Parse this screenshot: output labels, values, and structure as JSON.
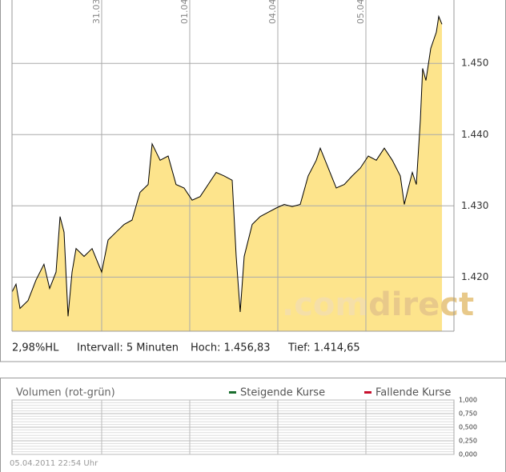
{
  "chart_data": [
    {
      "type": "line",
      "x": [
        -0.018,
        0.027,
        0.073,
        0.164,
        0.255,
        0.345,
        0.409,
        0.482,
        0.527,
        0.573,
        0.618,
        0.664,
        0.709,
        0.8,
        0.891,
        1.0,
        1.073,
        1.164,
        1.255,
        1.345,
        1.436,
        1.527,
        1.573,
        1.664,
        1.755,
        1.845,
        1.936,
        2.027,
        2.118,
        2.209,
        2.3,
        2.391,
        2.482,
        2.527,
        2.573,
        2.618,
        2.709,
        2.8,
        2.891,
        2.982,
        3.073,
        3.164,
        3.255,
        3.345,
        3.436,
        3.482,
        3.573,
        3.664,
        3.755,
        3.845,
        3.936,
        4.027,
        4.118,
        4.209,
        4.3,
        4.391,
        4.436,
        4.482,
        4.527,
        4.573,
        4.618,
        4.645,
        4.682,
        4.736,
        4.8,
        4.827,
        4.864
      ],
      "values": [
        1.4179,
        1.419,
        1.4156,
        1.4167,
        1.4196,
        1.4218,
        1.4184,
        1.4207,
        1.4285,
        1.4263,
        1.4145,
        1.4207,
        1.424,
        1.4229,
        1.424,
        1.4207,
        1.4252,
        1.4263,
        1.4274,
        1.428,
        1.4319,
        1.433,
        1.4387,
        1.4364,
        1.437,
        1.433,
        1.4325,
        1.4308,
        1.4313,
        1.433,
        1.4347,
        1.4342,
        1.4336,
        1.4229,
        1.4151,
        1.4229,
        1.4274,
        1.4285,
        1.4291,
        1.4297,
        1.4302,
        1.4299,
        1.4302,
        1.4342,
        1.4364,
        1.4381,
        1.4353,
        1.4325,
        1.433,
        1.4342,
        1.4353,
        1.437,
        1.4364,
        1.4381,
        1.4364,
        1.4342,
        1.4302,
        1.4325,
        1.4347,
        1.433,
        1.442,
        1.4493,
        1.4476,
        1.4521,
        1.4544,
        1.4566,
        1.4555
      ],
      "color": "#000000",
      "fill": "#fde48c",
      "xlim": [
        -0.018,
        5.0
      ],
      "xticks": [
        {
          "value": 1,
          "label": "31.03."
        },
        {
          "value": 2,
          "label": "01.04."
        },
        {
          "value": 3,
          "label": "04.04."
        },
        {
          "value": 4,
          "label": "05.04."
        }
      ],
      "ylim": [
        1.4124,
        1.4589
      ],
      "yticks": [
        {
          "value": 1.42,
          "label": "1.420"
        },
        {
          "value": 1.43,
          "label": "1.430"
        },
        {
          "value": 1.44,
          "label": "1.440"
        },
        {
          "value": 1.45,
          "label": "1.450"
        }
      ],
      "grid": true,
      "watermark": [
        ".com",
        "direct"
      ],
      "stats": [
        "2,98%HL",
        "Intervall: 5 Minuten",
        "Hoch: 1.456,83",
        "Tief: 1.414,65"
      ]
    },
    {
      "type": "bar",
      "title": "Volumen (rot-grün)",
      "series": [
        {
          "name": "Steigende Kurse",
          "color": "#1a6e2e"
        },
        {
          "name": "Fallende Kurse",
          "color": "#c8102e"
        }
      ],
      "xlim": [
        -0.018,
        5.0
      ],
      "xticks": [
        1,
        2,
        3,
        4
      ],
      "ylim": [
        0,
        1
      ],
      "yticks": [
        {
          "value": 0,
          "label": "0,000"
        },
        {
          "value": 0.25,
          "label": "0,250"
        },
        {
          "value": 0.5,
          "label": "0,500"
        },
        {
          "value": 0.75,
          "label": "0,750"
        },
        {
          "value": 1,
          "label": "1,000"
        }
      ],
      "grid": true,
      "timestamp": "05.04.2011 22:54 Uhr"
    }
  ]
}
